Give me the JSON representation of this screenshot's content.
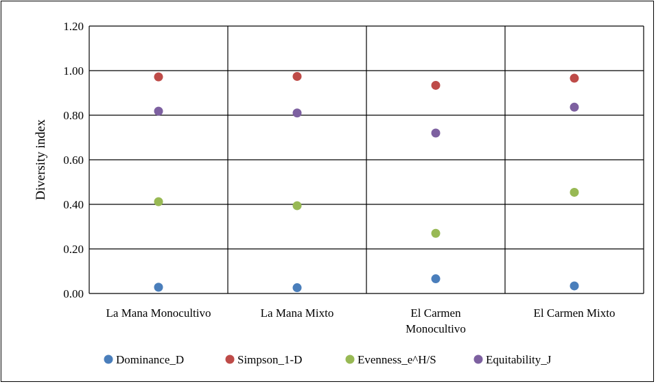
{
  "chart_data": {
    "type": "scatter",
    "ylabel": "Diversity index",
    "xlabel": "",
    "ylim": [
      0,
      1.2
    ],
    "yticks": [
      "0.00",
      "0.20",
      "0.40",
      "0.60",
      "0.80",
      "1.00",
      "1.20"
    ],
    "categories": [
      [
        "La Mana Monocultivo"
      ],
      [
        "La Mana Mixto"
      ],
      [
        "El Carmen",
        "Monocultivo"
      ],
      [
        "El Carmen Mixto"
      ]
    ],
    "grid": true,
    "legend_position": "bottom",
    "series": [
      {
        "name": "Dominance_D",
        "color": "#4a7ebb",
        "values": [
          0.028,
          0.026,
          0.066,
          0.034
        ]
      },
      {
        "name": "Simpson_1-D",
        "color": "#be4b48",
        "values": [
          0.972,
          0.974,
          0.934,
          0.966
        ]
      },
      {
        "name": "Evenness_e^H/S",
        "color": "#98b954",
        "values": [
          0.412,
          0.394,
          0.27,
          0.454
        ]
      },
      {
        "name": "Equitability_J",
        "color": "#7d60a0",
        "values": [
          0.818,
          0.81,
          0.72,
          0.836
        ]
      }
    ]
  }
}
